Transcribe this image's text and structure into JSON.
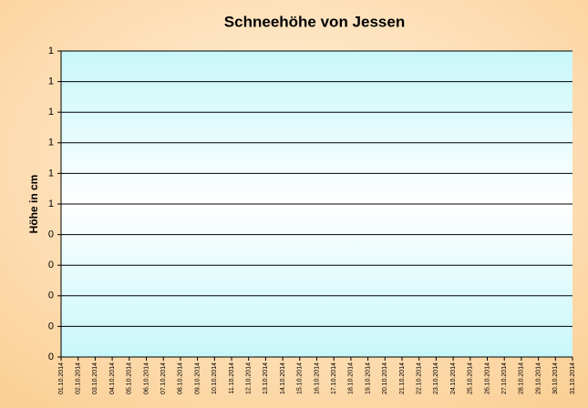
{
  "chart_data": {
    "type": "line",
    "title": "Schneehöhe von Jessen",
    "y_label": "Höhe in cm",
    "categories": [
      "01.10.2014",
      "02.10.2014",
      "03.10.2014",
      "04.10.2014",
      "05.10.2014",
      "06.10.2014",
      "07.10.2014",
      "08.10.2014",
      "09.10.2014",
      "10.10.2014",
      "11.10.2014",
      "12.10.2014",
      "13.10.2014",
      "14.10.2014",
      "15.10.2014",
      "16.10.2014",
      "17.10.2014",
      "18.10.2014",
      "19.10.2014",
      "20.10.2014",
      "21.10.2014",
      "22.10.2014",
      "23.10.2014",
      "24.10.2014",
      "25.10.2014",
      "26.10.2014",
      "27.10.2014",
      "28.10.2014",
      "29.10.2014",
      "30.10.2014",
      "31.10.2014"
    ],
    "values": [
      null,
      null,
      null,
      null,
      null,
      null,
      null,
      null,
      null,
      null,
      null,
      null,
      null,
      null,
      null,
      null,
      null,
      null,
      null,
      null,
      null,
      null,
      null,
      null,
      null,
      null,
      null,
      null,
      null,
      null,
      null
    ],
    "color": "#000080",
    "ylim": [
      0,
      1
    ],
    "yticks": [
      0,
      {
        "value": 0.1,
        "label": "0"
      },
      {
        "value": 0.2,
        "label": "0"
      },
      {
        "value": 0.3,
        "label": "0"
      },
      {
        "value": 0.4,
        "label": "0"
      },
      {
        "value": 0.5,
        "label": "1"
      },
      {
        "value": 0.6,
        "label": "1"
      },
      {
        "value": 0.7,
        "label": "1"
      },
      {
        "value": 0.8,
        "label": "1"
      },
      {
        "value": 0.9,
        "label": "1"
      },
      1
    ],
    "grid": true
  }
}
